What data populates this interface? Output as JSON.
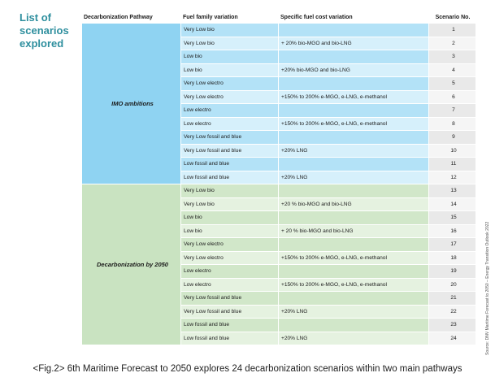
{
  "side_title": [
    "List of",
    "scenarios",
    "explored"
  ],
  "headers": {
    "pathway": "Decarbonization Pathway",
    "fuel": "Fuel family variation",
    "cost": "Specific fuel cost variation",
    "num": "Scenario No."
  },
  "groups": [
    {
      "pathway": "IMO ambitions",
      "rows": [
        {
          "fuel": "Very Low bio",
          "cost": "",
          "num": "1"
        },
        {
          "fuel": "Very Low bio",
          "cost": "+ 20% bio-MGO and bio-LNG",
          "num": "2"
        },
        {
          "fuel": "Low bio",
          "cost": "",
          "num": "3"
        },
        {
          "fuel": "Low bio",
          "cost": "+20% bio-MGO and bio-LNG",
          "num": "4"
        },
        {
          "fuel": "Very Low electro",
          "cost": "",
          "num": "5"
        },
        {
          "fuel": "Very Low electro",
          "cost": "+150% to 200% e-MGO, e-LNG, e-methanol",
          "num": "6"
        },
        {
          "fuel": "Low electro",
          "cost": "",
          "num": "7"
        },
        {
          "fuel": "Low electro",
          "cost": "+150% to 200% e-MGO, e-LNG, e-methanol",
          "num": "8"
        },
        {
          "fuel": "Very Low fossil and blue",
          "cost": "",
          "num": "9"
        },
        {
          "fuel": "Very Low fossil and blue",
          "cost": "+20% LNG",
          "num": "10"
        },
        {
          "fuel": "Low fossil and blue",
          "cost": "",
          "num": "11"
        },
        {
          "fuel": "Low fossil and blue",
          "cost": "+20% LNG",
          "num": "12"
        }
      ]
    },
    {
      "pathway": "Decarbonization by 2050",
      "rows": [
        {
          "fuel": "Very Low bio",
          "cost": "",
          "num": "13"
        },
        {
          "fuel": "Very Low bio",
          "cost": "+20 % bio-MGO and bio-LNG",
          "num": "14"
        },
        {
          "fuel": "Low bio",
          "cost": "",
          "num": "15"
        },
        {
          "fuel": "Low bio",
          "cost": "+ 20 % bio-MGO and bio-LNG",
          "num": "16"
        },
        {
          "fuel": "Very Low electro",
          "cost": "",
          "num": "17"
        },
        {
          "fuel": "Very Low electro",
          "cost": "+150% to 200% e-MGO, e-LNG, e-methanol",
          "num": "18"
        },
        {
          "fuel": "Low electro",
          "cost": "",
          "num": "19"
        },
        {
          "fuel": "Low electro",
          "cost": "+150% to 200% e-MGO, e-LNG, e-methanol",
          "num": "20"
        },
        {
          "fuel": "Very Low fossil and blue",
          "cost": "",
          "num": "21"
        },
        {
          "fuel": "Very Low fossil and blue",
          "cost": "+20% LNG",
          "num": "22"
        },
        {
          "fuel": "Low fossil and blue",
          "cost": "",
          "num": "23"
        },
        {
          "fuel": "Low fossil and blue",
          "cost": "+20% LNG",
          "num": "24"
        }
      ]
    }
  ],
  "source_note": "Source: DNV Maritime Forecast to 2050 – Energy Transition Outlook 2022",
  "caption": "<Fig.2> 6th Maritime Forecast to 2050 explores 24 decarbonization scenarios within two main pathways",
  "colors": {
    "title_teal": "#2e8f9e",
    "imo_pathway": "#8fd3f2",
    "imo_row": "#b3e2f7",
    "imo_row_alt": "#d6f0fb",
    "decarb_pathway": "#c9e3c1",
    "decarb_row": "#d1e7c9",
    "decarb_row_alt": "#e5f2e0",
    "number_cell": "#e9e9e9"
  }
}
